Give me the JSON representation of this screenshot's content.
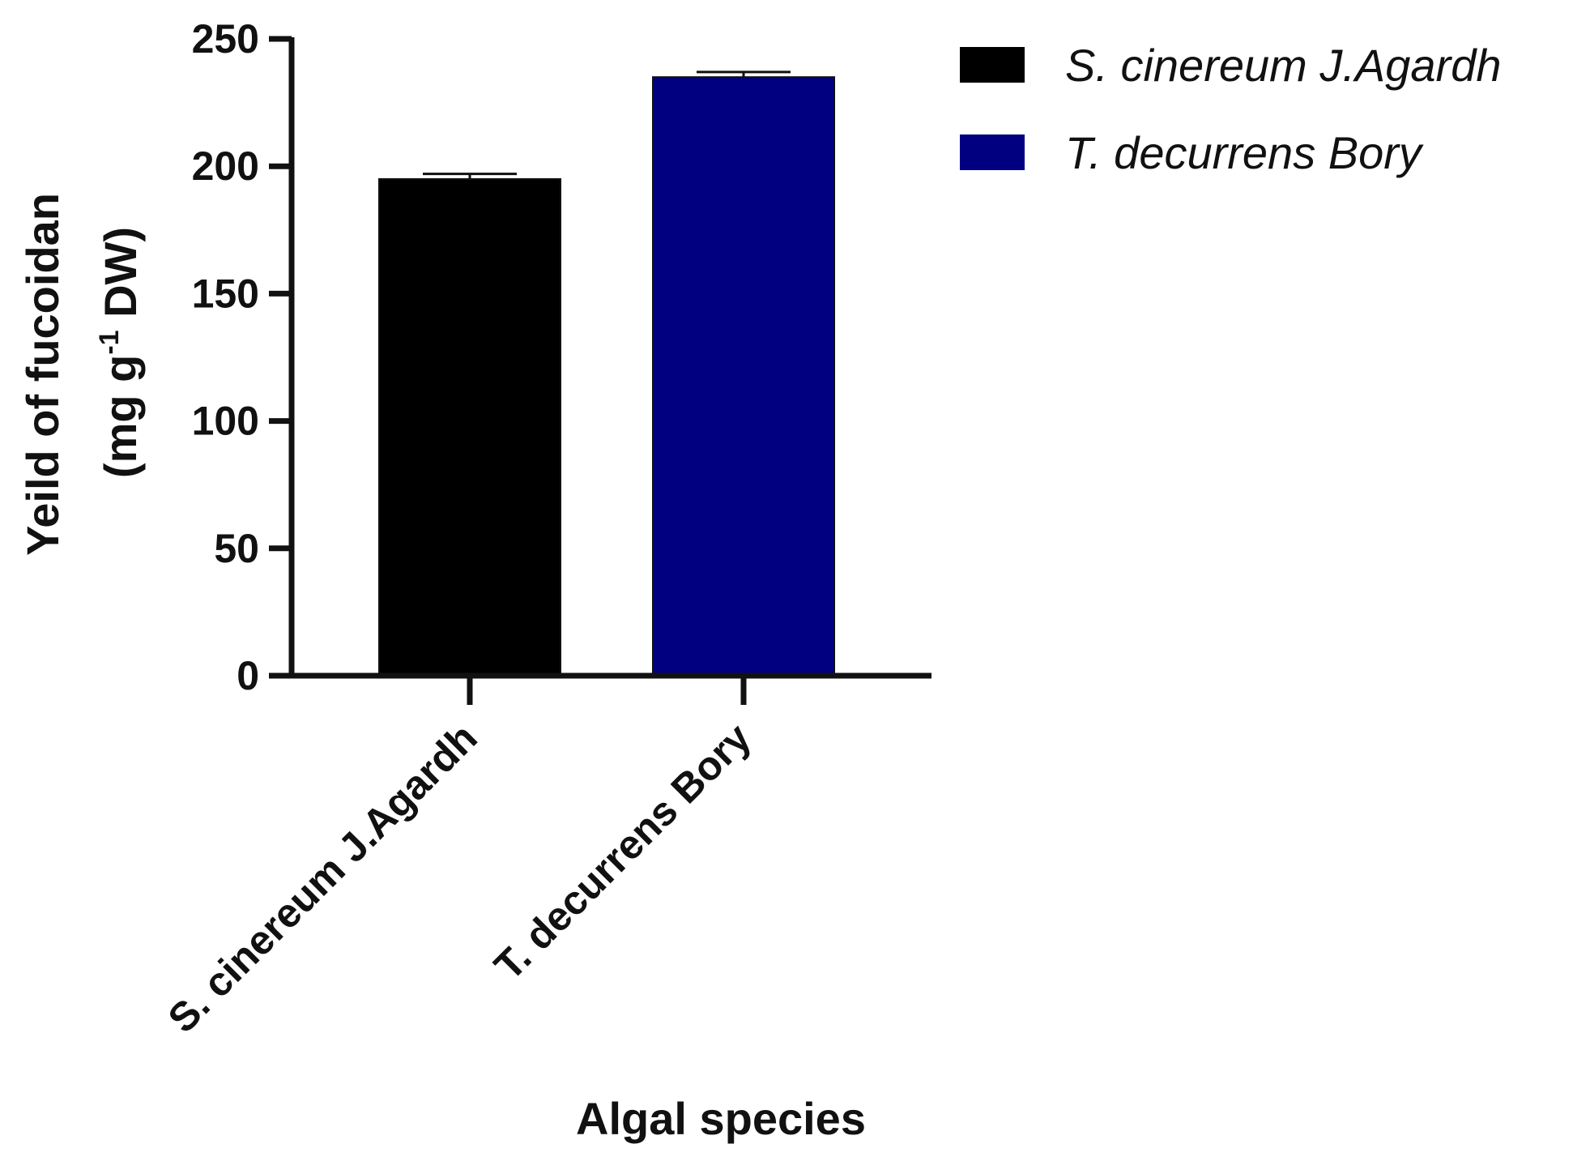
{
  "chart_data": {
    "type": "bar",
    "categories": [
      "S. cinereum J.Agardh",
      "T. decurrens Bory"
    ],
    "values": [
      195,
      235
    ],
    "errors": [
      2,
      2
    ],
    "colors": [
      "#000000",
      "#000080"
    ],
    "ylabel_line1": "Yeild of fucoidan",
    "ylabel_line2_pre": "(mg g",
    "ylabel_line2_sup": "-1",
    "ylabel_line2_post": " DW)",
    "xlabel": "Algal species",
    "ylim": [
      0,
      250
    ],
    "yticks": [
      0,
      50,
      100,
      150,
      200,
      250
    ],
    "legend": {
      "position": "top-right",
      "entries": [
        {
          "label": "S. cinereum J.Agardh",
          "color": "#000000"
        },
        {
          "label": "T. decurrens Bory",
          "color": "#000080"
        }
      ]
    },
    "grid": false
  }
}
